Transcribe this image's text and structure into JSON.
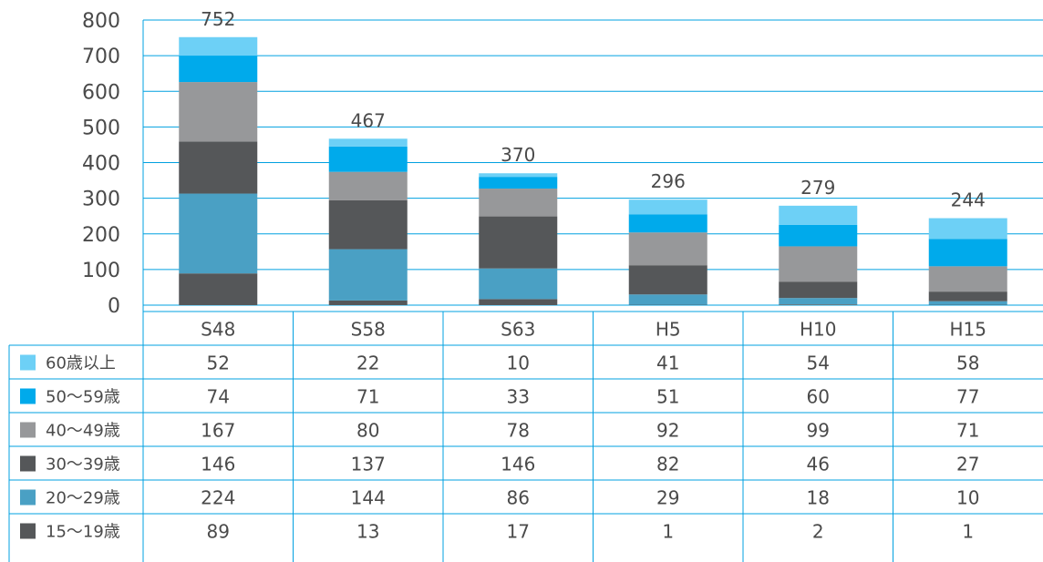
{
  "colors": {
    "grid": "#00a0e0",
    "text": "#4a4a4a"
  },
  "chart_data": {
    "type": "bar",
    "stacked": true,
    "categories": [
      "S48",
      "S58",
      "S63",
      "H5",
      "H10",
      "H15"
    ],
    "totals": [
      752,
      467,
      370,
      296,
      279,
      244
    ],
    "ylim": [
      0,
      800
    ],
    "yticks": [
      0,
      100,
      200,
      300,
      400,
      500,
      600,
      700,
      800
    ],
    "grid": true,
    "legend_position": "table-left",
    "series": [
      {
        "name": "15〜19歳",
        "color": "#555759",
        "values": [
          89,
          13,
          17,
          1,
          2,
          1
        ]
      },
      {
        "name": "20〜29歳",
        "color": "#4aa0c4",
        "values": [
          224,
          144,
          86,
          29,
          18,
          10
        ]
      },
      {
        "name": "30〜39歳",
        "color": "#555759",
        "values": [
          146,
          137,
          146,
          82,
          46,
          27
        ]
      },
      {
        "name": "40〜49歳",
        "color": "#97989a",
        "values": [
          167,
          80,
          78,
          92,
          99,
          71
        ]
      },
      {
        "name": "50〜59歳",
        "color": "#00aaeb",
        "values": [
          74,
          71,
          33,
          51,
          60,
          77
        ]
      },
      {
        "name": "60歳以上",
        "color": "#6dd0f6",
        "values": [
          52,
          22,
          10,
          41,
          54,
          58
        ]
      }
    ]
  }
}
